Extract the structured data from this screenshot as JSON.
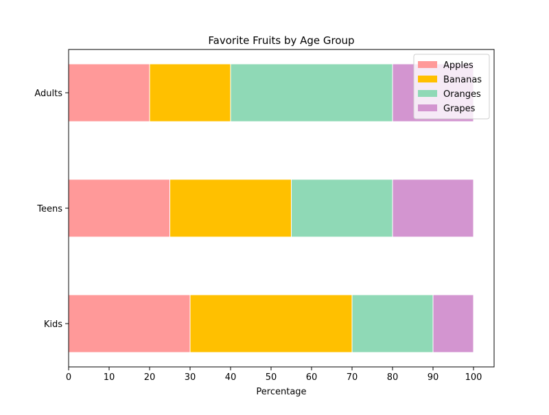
{
  "chart_data": {
    "type": "bar",
    "orientation": "horizontal",
    "stacked": true,
    "title": "Favorite Fruits by Age Group",
    "xlabel": "Percentage",
    "ylabel": "",
    "xlim": [
      0,
      105
    ],
    "xticks": [
      0,
      10,
      20,
      30,
      40,
      50,
      60,
      70,
      80,
      90,
      100
    ],
    "categories": [
      "Kids",
      "Teens",
      "Adults"
    ],
    "series": [
      {
        "name": "Apples",
        "values": [
          30,
          25,
          20
        ],
        "color": "#ff9999"
      },
      {
        "name": "Bananas",
        "values": [
          40,
          30,
          20
        ],
        "color": "#ffc000"
      },
      {
        "name": "Oranges",
        "values": [
          20,
          25,
          40
        ],
        "color": "#8fd9b6"
      },
      {
        "name": "Grapes",
        "values": [
          10,
          20,
          20
        ],
        "color": "#d395d0"
      }
    ],
    "legend_position": "top-right",
    "grid": false
  }
}
